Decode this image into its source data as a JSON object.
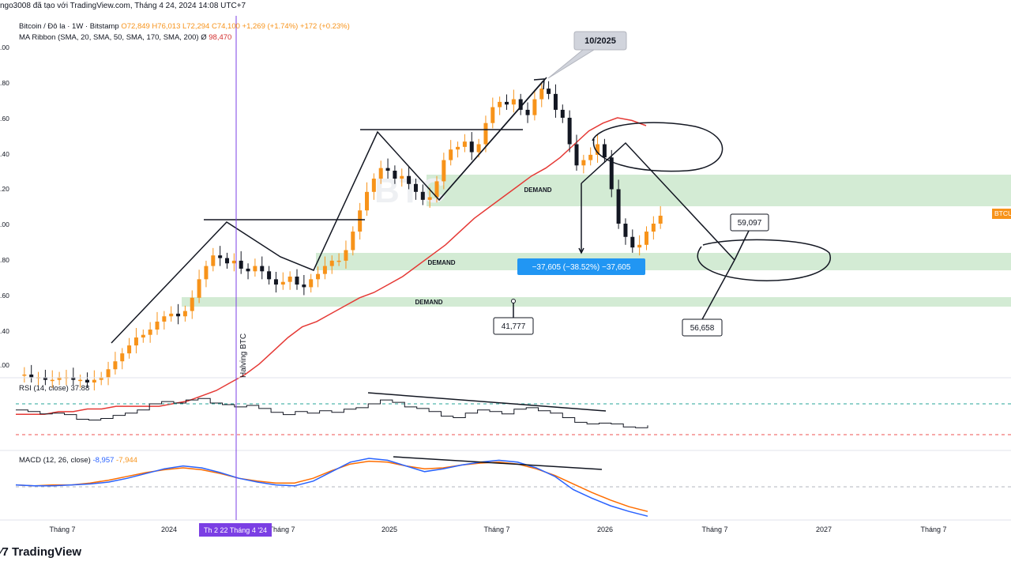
{
  "header": {
    "publisher_text": "ngo3008 đã tạo với TradingView.com, Tháng 4 24, 2024 14:08 UTC+7"
  },
  "legend": {
    "symbol": "Bitcoin / Đô la · 1W · Bitstamp",
    "ohlc": "O72,849 H76,013 L72,294 C74,100",
    "change": "+1,269 (+1.74%) +172 (+0.23%)",
    "ma_ribbon_label": "MA Ribbon (SMA, 20, SMA, 50, SMA, 170, SMA, 200)",
    "ma_ribbon_symbol": "Ø",
    "ma_ribbon_value": "98,470",
    "rsi_label": "RSI (14, close)",
    "rsi_value": "37.88",
    "macd_label": "MACD (12, 26, close)",
    "macd_value_1": "-8,957",
    "macd_value_2": "-7,944"
  },
  "annotations": {
    "date_callout": "10/2025",
    "demand_labels": [
      "DEMAND",
      "DEMAND",
      "DEMAND"
    ],
    "measure_label": "−37,605 (−38.52%) −37,605",
    "target_1": "59,097",
    "target_2": "56,658",
    "target_3": "41,777",
    "halving_label": "Halving BTC",
    "watermark": "BTC"
  },
  "price_tag": "BTCU",
  "x_axis": {
    "labels": [
      "Tháng 7",
      "2024",
      "Tháng 7",
      "2025",
      "Tháng 7",
      "2026",
      "Tháng 7",
      "2027",
      "Tháng 7"
    ],
    "cursor_label": "Th 2 22 Tháng 4 '24"
  },
  "y_axis_labels": [
    ".00",
    ".80",
    ".60",
    ".40",
    ".20",
    ".00",
    ".80",
    ".60",
    ".40",
    ".00"
  ],
  "footer": {
    "brand": "TradingView"
  },
  "colors": {
    "bull": "#f7931a",
    "bear": "#131722",
    "sma": "#e53935",
    "demand_zone": "#c8e6c9",
    "rsi": "#131722",
    "macd": "#2962ff",
    "signal": "#ff6d00",
    "cursor": "#7b3fe4",
    "measure": "#2196f3"
  },
  "chart_data": {
    "type": "candlestick",
    "symbol": "BTC/USD",
    "interval": "1W",
    "exchange": "Bitstamp",
    "last_ohlc": {
      "open": 72849,
      "high": 76013,
      "low": 72294,
      "close": 74100
    },
    "projected_drop": {
      "points": -37605,
      "percent": -38.52
    },
    "price_targets": [
      59097,
      56658,
      41777
    ],
    "indicators": {
      "ma_ribbon": {
        "type": "SMA",
        "periods": [
          20,
          50,
          170,
          200
        ],
        "value": 98470
      },
      "rsi": {
        "period": 14,
        "value": 37.88
      },
      "macd": {
        "fast": 12,
        "slow": 26,
        "macd": -8957,
        "signal": -7944
      }
    },
    "x_ticks": [
      "Tháng 7",
      "2024",
      "Tháng 7",
      "2025",
      "Tháng 7",
      "2026",
      "Tháng 7",
      "2027",
      "Tháng 7"
    ],
    "candle_path": [
      0.43,
      0.43,
      0.42,
      0.42,
      0.41,
      0.41,
      0.42,
      0.42,
      0.41,
      0.41,
      0.4,
      0.41,
      0.42,
      0.45,
      0.48,
      0.51,
      0.54,
      0.57,
      0.58,
      0.6,
      0.63,
      0.65,
      0.66,
      0.65,
      0.67,
      0.72,
      0.79,
      0.84,
      0.88,
      0.87,
      0.85,
      0.86,
      0.83,
      0.82,
      0.84,
      0.82,
      0.79,
      0.77,
      0.78,
      0.8,
      0.77,
      0.76,
      0.79,
      0.81,
      0.84,
      0.86,
      0.86,
      0.9,
      0.97,
      1.05,
      1.12,
      1.17,
      1.21,
      1.2,
      1.17,
      1.18,
      1.15,
      1.12,
      1.09,
      1.1,
      1.16,
      1.24,
      1.28,
      1.29,
      1.31,
      1.27,
      1.3,
      1.38,
      1.44,
      1.46,
      1.45,
      1.47,
      1.43,
      1.41,
      1.47,
      1.51,
      1.49,
      1.43,
      1.4,
      1.3,
      1.22,
      1.24,
      1.26,
      1.3,
      1.25,
      1.13,
      1.0,
      0.95,
      0.91,
      0.92,
      0.97,
      1.0,
      1.03
    ],
    "sma_path": [
      0.28,
      0.28,
      0.28,
      0.29,
      0.29,
      0.3,
      0.3,
      0.31,
      0.31,
      0.31,
      0.31,
      0.32,
      0.33,
      0.35,
      0.37,
      0.4,
      0.43,
      0.47,
      0.52,
      0.57,
      0.61,
      0.63,
      0.66,
      0.69,
      0.72,
      0.74,
      0.77,
      0.8,
      0.84,
      0.88,
      0.92,
      0.97,
      1.02,
      1.06,
      1.1,
      1.14,
      1.18,
      1.21,
      1.25,
      1.3,
      1.35,
      1.38,
      1.4,
      1.39,
      1.37
    ],
    "rsi_path": [
      62,
      60,
      57,
      58,
      56,
      50,
      49,
      51,
      55,
      58,
      62,
      70,
      73,
      71,
      75,
      77,
      71,
      69,
      66,
      68,
      64,
      59,
      56,
      60,
      58,
      61,
      59,
      63,
      65,
      70,
      75,
      72,
      66,
      64,
      60,
      54,
      52,
      58,
      62,
      60,
      57,
      63,
      65,
      61,
      58,
      52,
      46,
      44,
      45,
      44,
      40,
      39,
      42
    ],
    "macd_path": [
      0.2,
      0.1,
      0.1,
      0.2,
      0.3,
      0.5,
      0.9,
      1.4,
      1.9,
      2.2,
      2.0,
      1.5,
      0.9,
      0.5,
      0.2,
      0.1,
      0.6,
      1.6,
      2.6,
      3.0,
      2.8,
      2.2,
      1.6,
      1.9,
      2.3,
      2.6,
      2.8,
      2.6,
      2.0,
      1.1,
      -0.3,
      -1.2,
      -2.0,
      -2.6,
      -3.1
    ],
    "signal_path": [
      0.2,
      0.1,
      0.2,
      0.2,
      0.4,
      0.7,
      1.1,
      1.5,
      1.8,
      2.0,
      1.8,
      1.4,
      0.9,
      0.6,
      0.4,
      0.4,
      0.9,
      1.7,
      2.4,
      2.7,
      2.6,
      2.2,
      1.9,
      2.0,
      2.3,
      2.5,
      2.6,
      2.4,
      1.9,
      1.2,
      0.3,
      -0.6,
      -1.4,
      -2.1,
      -2.6
    ]
  }
}
